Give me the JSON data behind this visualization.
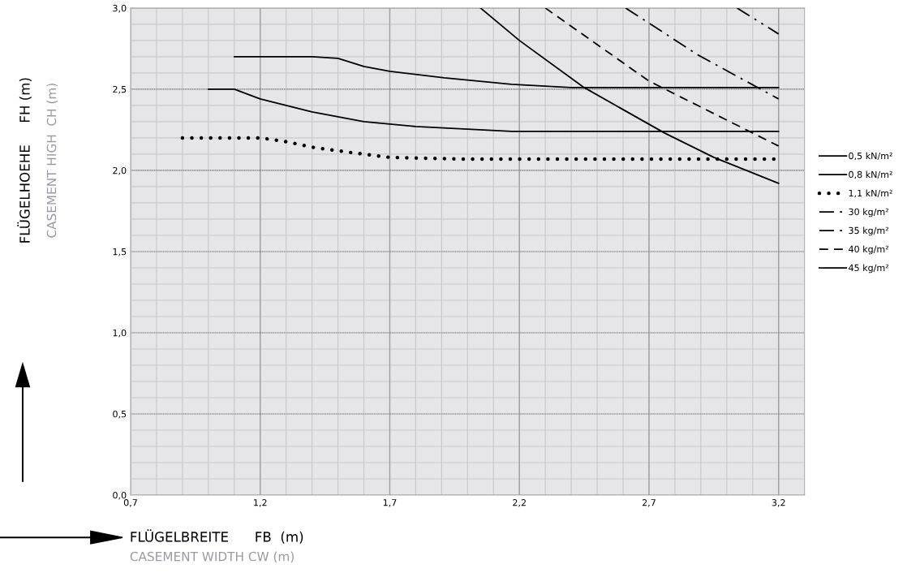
{
  "chart_data": {
    "type": "line",
    "xlabel": "FLÜGELBREITE      FB  (m)",
    "annotations": [
      "CASEMENT WIDTH CW (m)",
      "FLÜGELHOEHE     FH (m)",
      "CASEMENT HIGH  CH (m)"
    ],
    "xlim": [
      0.7,
      3.3
    ],
    "ylim": [
      0,
      3.0
    ],
    "xticks": [
      {
        "value": 0.7,
        "label": "0,7"
      },
      {
        "value": 1.2,
        "label": "1,2"
      },
      {
        "value": 1.7,
        "label": "1,7"
      },
      {
        "value": 2.2,
        "label": "2,2"
      },
      {
        "value": 2.7,
        "label": "2,7"
      },
      {
        "value": 3.2,
        "label": "3,2"
      }
    ],
    "yticks": [
      {
        "value": 0,
        "label": "0,0"
      },
      {
        "value": 0.5,
        "label": "0,5"
      },
      {
        "value": 1.0,
        "label": "1,0"
      },
      {
        "value": 1.5,
        "label": "1,5"
      },
      {
        "value": 2.0,
        "label": "2,0"
      },
      {
        "value": 2.5,
        "label": "2,5"
      },
      {
        "value": 3.0,
        "label": "3,0"
      }
    ],
    "grid": true,
    "legend": "right",
    "marker": "none",
    "series": [
      {
        "name": "0,5 kN/m²",
        "color": "#000000",
        "line_style": "solid",
        "x": [
          1.1,
          1.4,
          1.5,
          1.6,
          1.7,
          1.91,
          2.17,
          2.4,
          3.2
        ],
        "values": [
          2.7,
          2.7,
          2.69,
          2.64,
          2.61,
          2.57,
          2.53,
          2.51,
          2.51
        ]
      },
      {
        "name": "0,8 kN/m²",
        "color": "#000000",
        "line_style": "solid",
        "x": [
          1.0,
          1.1,
          1.2,
          1.4,
          1.6,
          1.8,
          2.17,
          3.2
        ],
        "values": [
          2.5,
          2.5,
          2.44,
          2.36,
          2.3,
          2.27,
          2.24,
          2.24
        ]
      },
      {
        "name": "1,1 kN/m²",
        "color": "#000000",
        "line_style": "dotted",
        "x": [
          0.9,
          1.2,
          1.29,
          1.41,
          1.55,
          1.7,
          1.96,
          3.2
        ],
        "values": [
          2.2,
          2.2,
          2.18,
          2.14,
          2.11,
          2.08,
          2.07,
          2.07
        ]
      },
      {
        "name": "30 kg/m²",
        "color": "#000000",
        "line_style": "dashdotdot",
        "x": [
          3.04,
          3.2
        ],
        "values": [
          3.0,
          2.84
        ]
      },
      {
        "name": "35 kg/m²",
        "color": "#000000",
        "line_style": "dashdot",
        "x": [
          2.61,
          2.89,
          3.2
        ],
        "values": [
          3.0,
          2.71,
          2.44
        ]
      },
      {
        "name": "40 kg/m²",
        "color": "#000000",
        "line_style": "dashed",
        "x": [
          2.3,
          2.7,
          3.2
        ],
        "values": [
          3.0,
          2.55,
          2.15
        ]
      },
      {
        "name": "45 kg/m²",
        "color": "#000000",
        "line_style": "solid",
        "x": [
          2.05,
          2.2,
          2.45,
          2.76,
          2.95,
          3.2
        ],
        "values": [
          3.0,
          2.8,
          2.51,
          2.23,
          2.08,
          1.92
        ]
      }
    ]
  }
}
